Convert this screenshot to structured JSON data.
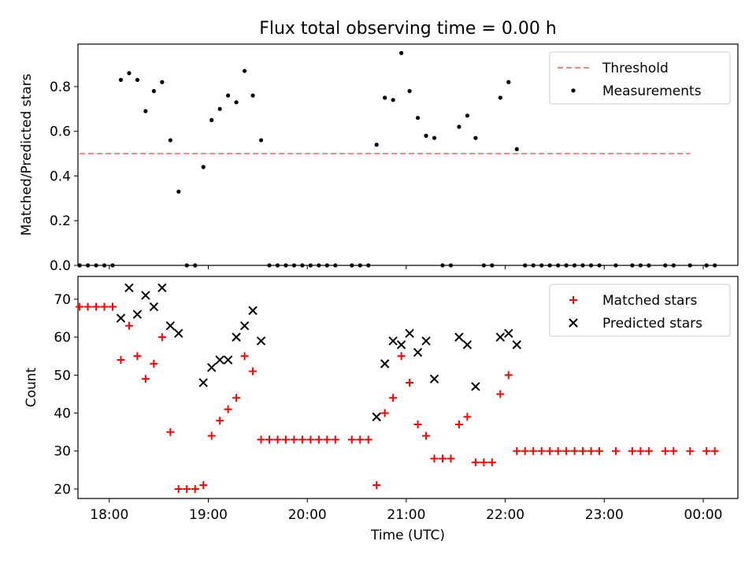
{
  "figure": {
    "title": "Flux total observing time = 0.00 h"
  },
  "chart_data": [
    {
      "type": "scatter",
      "panel": "top",
      "title": "Flux total observing time = 0.00 h",
      "xlabel": "",
      "ylabel": "Matched/Predicted stars",
      "xlim": [
        "17:41",
        "00:21"
      ],
      "ylim": [
        0,
        0.99
      ],
      "yticks": [
        0.0,
        0.2,
        0.4,
        0.6,
        0.8
      ],
      "ytick_labels": [
        "0.0",
        "0.2",
        "0.4",
        "0.6",
        "0.8"
      ],
      "legend_position": "upper right",
      "grid": false,
      "threshold": {
        "name": "Threshold",
        "y": 0.5,
        "x_start": "17:42",
        "x_end": "23:52",
        "color": "#ff7f7f",
        "style": "dashed"
      },
      "series": [
        {
          "name": "Measurements",
          "marker": "dot",
          "color": "#000000",
          "points": [
            {
              "x": "17:42",
              "y": 0.0
            },
            {
              "x": "17:47",
              "y": 0.0
            },
            {
              "x": "17:52",
              "y": 0.0
            },
            {
              "x": "17:57",
              "y": 0.0
            },
            {
              "x": "18:02",
              "y": 0.0
            },
            {
              "x": "18:07",
              "y": 0.83
            },
            {
              "x": "18:12",
              "y": 0.86
            },
            {
              "x": "18:17",
              "y": 0.83
            },
            {
              "x": "18:22",
              "y": 0.69
            },
            {
              "x": "18:27",
              "y": 0.78
            },
            {
              "x": "18:32",
              "y": 0.82
            },
            {
              "x": "18:37",
              "y": 0.56
            },
            {
              "x": "18:42",
              "y": 0.33
            },
            {
              "x": "18:47",
              "y": 0.0
            },
            {
              "x": "18:52",
              "y": 0.0
            },
            {
              "x": "18:57",
              "y": 0.44
            },
            {
              "x": "19:02",
              "y": 0.65
            },
            {
              "x": "19:07",
              "y": 0.7
            },
            {
              "x": "19:12",
              "y": 0.76
            },
            {
              "x": "19:17",
              "y": 0.73
            },
            {
              "x": "19:22",
              "y": 0.87
            },
            {
              "x": "19:27",
              "y": 0.76
            },
            {
              "x": "19:32",
              "y": 0.56
            },
            {
              "x": "19:37",
              "y": 0.0
            },
            {
              "x": "19:42",
              "y": 0.0
            },
            {
              "x": "19:47",
              "y": 0.0
            },
            {
              "x": "19:52",
              "y": 0.0
            },
            {
              "x": "19:57",
              "y": 0.0
            },
            {
              "x": "20:02",
              "y": 0.0
            },
            {
              "x": "20:07",
              "y": 0.0
            },
            {
              "x": "20:12",
              "y": 0.0
            },
            {
              "x": "20:17",
              "y": 0.0
            },
            {
              "x": "20:27",
              "y": 0.0
            },
            {
              "x": "20:32",
              "y": 0.0
            },
            {
              "x": "20:37",
              "y": 0.0
            },
            {
              "x": "20:42",
              "y": 0.54
            },
            {
              "x": "20:47",
              "y": 0.75
            },
            {
              "x": "20:52",
              "y": 0.74
            },
            {
              "x": "20:57",
              "y": 0.95
            },
            {
              "x": "21:02",
              "y": 0.78
            },
            {
              "x": "21:07",
              "y": 0.66
            },
            {
              "x": "21:12",
              "y": 0.58
            },
            {
              "x": "21:17",
              "y": 0.57
            },
            {
              "x": "21:22",
              "y": 0.0
            },
            {
              "x": "21:27",
              "y": 0.0
            },
            {
              "x": "21:32",
              "y": 0.62
            },
            {
              "x": "21:37",
              "y": 0.67
            },
            {
              "x": "21:42",
              "y": 0.57
            },
            {
              "x": "21:47",
              "y": 0.0
            },
            {
              "x": "21:52",
              "y": 0.0
            },
            {
              "x": "21:57",
              "y": 0.75
            },
            {
              "x": "22:02",
              "y": 0.82
            },
            {
              "x": "22:07",
              "y": 0.52
            },
            {
              "x": "22:12",
              "y": 0.0
            },
            {
              "x": "22:17",
              "y": 0.0
            },
            {
              "x": "22:22",
              "y": 0.0
            },
            {
              "x": "22:27",
              "y": 0.0
            },
            {
              "x": "22:32",
              "y": 0.0
            },
            {
              "x": "22:37",
              "y": 0.0
            },
            {
              "x": "22:42",
              "y": 0.0
            },
            {
              "x": "22:47",
              "y": 0.0
            },
            {
              "x": "22:52",
              "y": 0.0
            },
            {
              "x": "22:57",
              "y": 0.0
            },
            {
              "x": "23:07",
              "y": 0.0
            },
            {
              "x": "23:17",
              "y": 0.0
            },
            {
              "x": "23:22",
              "y": 0.0
            },
            {
              "x": "23:27",
              "y": 0.0
            },
            {
              "x": "23:37",
              "y": 0.0
            },
            {
              "x": "23:42",
              "y": 0.0
            },
            {
              "x": "23:52",
              "y": 0.0
            },
            {
              "x": "00:02",
              "y": 0.0
            },
            {
              "x": "00:07",
              "y": 0.0
            }
          ]
        }
      ]
    },
    {
      "type": "scatter",
      "panel": "bottom",
      "title": "",
      "xlabel": "Time (UTC)",
      "ylabel": "Count",
      "xlim": [
        "17:41",
        "00:21"
      ],
      "ylim": [
        17.5,
        76
      ],
      "xticks": [
        "18:00",
        "19:00",
        "20:00",
        "21:00",
        "22:00",
        "23:00",
        "00:00"
      ],
      "xtick_labels": [
        "18:00",
        "19:00",
        "20:00",
        "21:00",
        "22:00",
        "23:00",
        "00:00"
      ],
      "yticks": [
        20,
        30,
        40,
        50,
        60,
        70
      ],
      "ytick_labels": [
        "20",
        "30",
        "40",
        "50",
        "60",
        "70"
      ],
      "legend_position": "upper right",
      "grid": false,
      "series": [
        {
          "name": "Matched stars",
          "marker": "plus",
          "color": "#ff0000",
          "points": [
            {
              "x": "17:42",
              "y": 68
            },
            {
              "x": "17:47",
              "y": 68
            },
            {
              "x": "17:52",
              "y": 68
            },
            {
              "x": "17:57",
              "y": 68
            },
            {
              "x": "18:02",
              "y": 68
            },
            {
              "x": "18:07",
              "y": 54
            },
            {
              "x": "18:12",
              "y": 63
            },
            {
              "x": "18:17",
              "y": 55
            },
            {
              "x": "18:22",
              "y": 49
            },
            {
              "x": "18:27",
              "y": 53
            },
            {
              "x": "18:32",
              "y": 60
            },
            {
              "x": "18:37",
              "y": 35
            },
            {
              "x": "18:42",
              "y": 20
            },
            {
              "x": "18:47",
              "y": 20
            },
            {
              "x": "18:52",
              "y": 20
            },
            {
              "x": "18:57",
              "y": 21
            },
            {
              "x": "19:02",
              "y": 34
            },
            {
              "x": "19:07",
              "y": 38
            },
            {
              "x": "19:12",
              "y": 41
            },
            {
              "x": "19:17",
              "y": 44
            },
            {
              "x": "19:22",
              "y": 55
            },
            {
              "x": "19:27",
              "y": 51
            },
            {
              "x": "19:32",
              "y": 33
            },
            {
              "x": "19:37",
              "y": 33
            },
            {
              "x": "19:42",
              "y": 33
            },
            {
              "x": "19:47",
              "y": 33
            },
            {
              "x": "19:52",
              "y": 33
            },
            {
              "x": "19:57",
              "y": 33
            },
            {
              "x": "20:02",
              "y": 33
            },
            {
              "x": "20:07",
              "y": 33
            },
            {
              "x": "20:12",
              "y": 33
            },
            {
              "x": "20:17",
              "y": 33
            },
            {
              "x": "20:27",
              "y": 33
            },
            {
              "x": "20:32",
              "y": 33
            },
            {
              "x": "20:37",
              "y": 33
            },
            {
              "x": "20:42",
              "y": 21
            },
            {
              "x": "20:47",
              "y": 40
            },
            {
              "x": "20:52",
              "y": 44
            },
            {
              "x": "20:57",
              "y": 55
            },
            {
              "x": "21:02",
              "y": 48
            },
            {
              "x": "21:07",
              "y": 37
            },
            {
              "x": "21:12",
              "y": 34
            },
            {
              "x": "21:17",
              "y": 28
            },
            {
              "x": "21:22",
              "y": 28
            },
            {
              "x": "21:27",
              "y": 28
            },
            {
              "x": "21:32",
              "y": 37
            },
            {
              "x": "21:37",
              "y": 39
            },
            {
              "x": "21:42",
              "y": 27
            },
            {
              "x": "21:47",
              "y": 27
            },
            {
              "x": "21:52",
              "y": 27
            },
            {
              "x": "21:57",
              "y": 45
            },
            {
              "x": "22:02",
              "y": 50
            },
            {
              "x": "22:07",
              "y": 30
            },
            {
              "x": "22:12",
              "y": 30
            },
            {
              "x": "22:17",
              "y": 30
            },
            {
              "x": "22:22",
              "y": 30
            },
            {
              "x": "22:27",
              "y": 30
            },
            {
              "x": "22:32",
              "y": 30
            },
            {
              "x": "22:37",
              "y": 30
            },
            {
              "x": "22:42",
              "y": 30
            },
            {
              "x": "22:47",
              "y": 30
            },
            {
              "x": "22:52",
              "y": 30
            },
            {
              "x": "22:57",
              "y": 30
            },
            {
              "x": "23:07",
              "y": 30
            },
            {
              "x": "23:17",
              "y": 30
            },
            {
              "x": "23:22",
              "y": 30
            },
            {
              "x": "23:27",
              "y": 30
            },
            {
              "x": "23:37",
              "y": 30
            },
            {
              "x": "23:42",
              "y": 30
            },
            {
              "x": "23:52",
              "y": 30
            },
            {
              "x": "00:02",
              "y": 30
            },
            {
              "x": "00:07",
              "y": 30
            }
          ]
        },
        {
          "name": "Predicted stars",
          "marker": "x",
          "color": "#000000",
          "points": [
            {
              "x": "18:07",
              "y": 65
            },
            {
              "x": "18:12",
              "y": 73
            },
            {
              "x": "18:17",
              "y": 66
            },
            {
              "x": "18:22",
              "y": 71
            },
            {
              "x": "18:27",
              "y": 68
            },
            {
              "x": "18:32",
              "y": 73
            },
            {
              "x": "18:37",
              "y": 63
            },
            {
              "x": "18:42",
              "y": 61
            },
            {
              "x": "18:57",
              "y": 48
            },
            {
              "x": "19:02",
              "y": 52
            },
            {
              "x": "19:07",
              "y": 54
            },
            {
              "x": "19:12",
              "y": 54
            },
            {
              "x": "19:17",
              "y": 60
            },
            {
              "x": "19:22",
              "y": 63
            },
            {
              "x": "19:27",
              "y": 67
            },
            {
              "x": "19:32",
              "y": 59
            },
            {
              "x": "20:42",
              "y": 39
            },
            {
              "x": "20:47",
              "y": 53
            },
            {
              "x": "20:52",
              "y": 59
            },
            {
              "x": "20:57",
              "y": 58
            },
            {
              "x": "21:02",
              "y": 61
            },
            {
              "x": "21:07",
              "y": 56
            },
            {
              "x": "21:12",
              "y": 59
            },
            {
              "x": "21:17",
              "y": 49
            },
            {
              "x": "21:32",
              "y": 60
            },
            {
              "x": "21:37",
              "y": 58
            },
            {
              "x": "21:42",
              "y": 47
            },
            {
              "x": "21:57",
              "y": 60
            },
            {
              "x": "22:02",
              "y": 61
            },
            {
              "x": "22:07",
              "y": 58
            }
          ]
        }
      ]
    }
  ]
}
